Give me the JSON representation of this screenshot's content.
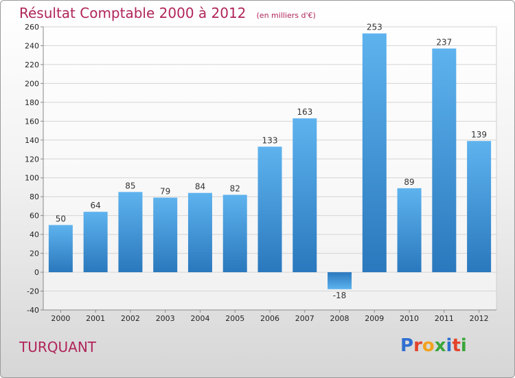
{
  "header": {
    "title": "Résultat Comptable 2000 à 2012",
    "unit_note": "(en milliers d'€)"
  },
  "commune": "TURQUANT",
  "logo": {
    "text": "Proxiti",
    "letter_colors": [
      "#2f6fd0",
      "#e3432a",
      "#f2a21e",
      "#3aa63a",
      "#2f6fd0",
      "#e3432a",
      "#3aa63a"
    ]
  },
  "chart_data": {
    "type": "bar",
    "title": "Résultat Comptable 2000 à 2012",
    "subtitle": "(en milliers d'€)",
    "categories": [
      "2000",
      "2001",
      "2002",
      "2003",
      "2004",
      "2005",
      "2006",
      "2007",
      "2008",
      "2009",
      "2010",
      "2011",
      "2012"
    ],
    "values": [
      50,
      64,
      85,
      79,
      84,
      82,
      133,
      163,
      -18,
      253,
      89,
      237,
      139
    ],
    "data_labels": [
      "50",
      "64",
      "85",
      "79",
      "84",
      "82",
      "133",
      "163",
      "-18",
      "253",
      "89",
      "237",
      "139"
    ],
    "ylim": [
      -40,
      260
    ],
    "yticks": [
      -40,
      -20,
      0,
      20,
      40,
      60,
      80,
      100,
      120,
      140,
      160,
      180,
      200,
      220,
      240,
      260
    ],
    "grid": true,
    "bar_color": "#4aa3e6"
  }
}
